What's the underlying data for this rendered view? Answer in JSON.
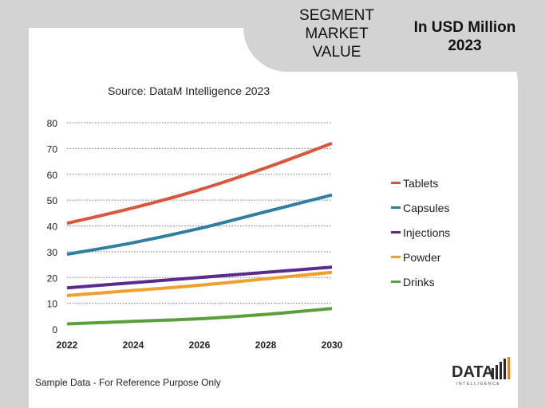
{
  "header": {
    "segment_title": "SEGMENT\nMARKET\nVALUE",
    "unit_title": "In USD Million\n2023"
  },
  "source": "Source: DataM Intelligence 2023",
  "footer": "Sample Data - For Reference Purpose Only",
  "logo": {
    "text": "DATA",
    "subtext": "INTELLIGENCE",
    "accent": "#e8842a"
  },
  "chart_data": {
    "type": "line",
    "x": [
      2022,
      2024,
      2026,
      2028,
      2030
    ],
    "xlim": [
      2022,
      2030
    ],
    "ylim": [
      0,
      80
    ],
    "yticks": [
      0,
      10,
      20,
      30,
      40,
      50,
      60,
      70,
      80
    ],
    "xticks": [
      2022,
      2024,
      2026,
      2028,
      2030
    ],
    "grid": true,
    "legend_position": "right",
    "series": [
      {
        "name": "Tablets",
        "color": "#d9573a",
        "values": [
          41,
          47,
          54,
          62.5,
          72
        ]
      },
      {
        "name": "Capsules",
        "color": "#2e7fa0",
        "values": [
          29,
          33.5,
          39,
          45.5,
          52
        ]
      },
      {
        "name": "Injections",
        "color": "#5b2a8e",
        "values": [
          16,
          18,
          20,
          22,
          24
        ]
      },
      {
        "name": "Powder",
        "color": "#f0a030",
        "values": [
          13,
          15,
          17,
          19.5,
          22
        ]
      },
      {
        "name": "Drinks",
        "color": "#5aa03a",
        "values": [
          2,
          3,
          4,
          5.7,
          8
        ]
      }
    ]
  }
}
